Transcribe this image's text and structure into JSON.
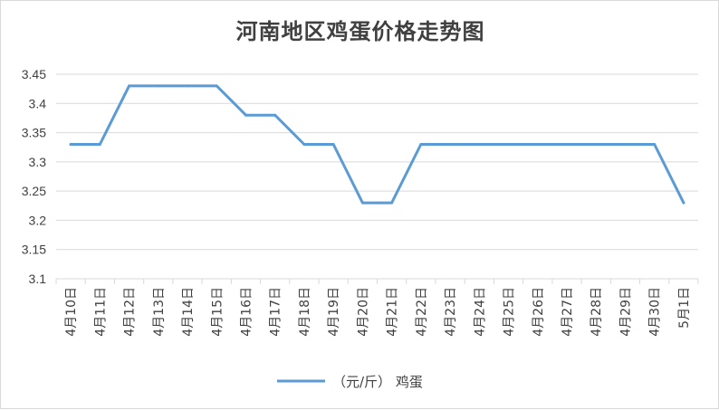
{
  "chart_data": {
    "type": "line",
    "title": "河南地区鸡蛋价格走势图",
    "xlabel": "",
    "ylabel": "",
    "categories": [
      "4月10日",
      "4月11日",
      "4月12日",
      "4月13日",
      "4月14日",
      "4月15日",
      "4月16日",
      "4月17日",
      "4月18日",
      "4月19日",
      "4月20日",
      "4月21日",
      "4月22日",
      "4月23日",
      "4月24日",
      "4月25日",
      "4月26日",
      "4月27日",
      "4月28日",
      "4月29日",
      "4月30日",
      "5月1日"
    ],
    "y_ticks": [
      "3.1",
      "3.15",
      "3.2",
      "3.25",
      "3.3",
      "3.35",
      "3.4",
      "3.45"
    ],
    "ylim": [
      3.1,
      3.45
    ],
    "grid": true,
    "legend_position": "bottom",
    "series": [
      {
        "name": "（元/斤） 鸡蛋",
        "color": "#5b9bd5",
        "values": [
          3.33,
          3.33,
          3.43,
          3.43,
          3.43,
          3.43,
          3.38,
          3.38,
          3.33,
          3.33,
          3.23,
          3.23,
          3.33,
          3.33,
          3.33,
          3.33,
          3.33,
          3.33,
          3.33,
          3.33,
          3.33,
          3.23
        ]
      }
    ]
  }
}
